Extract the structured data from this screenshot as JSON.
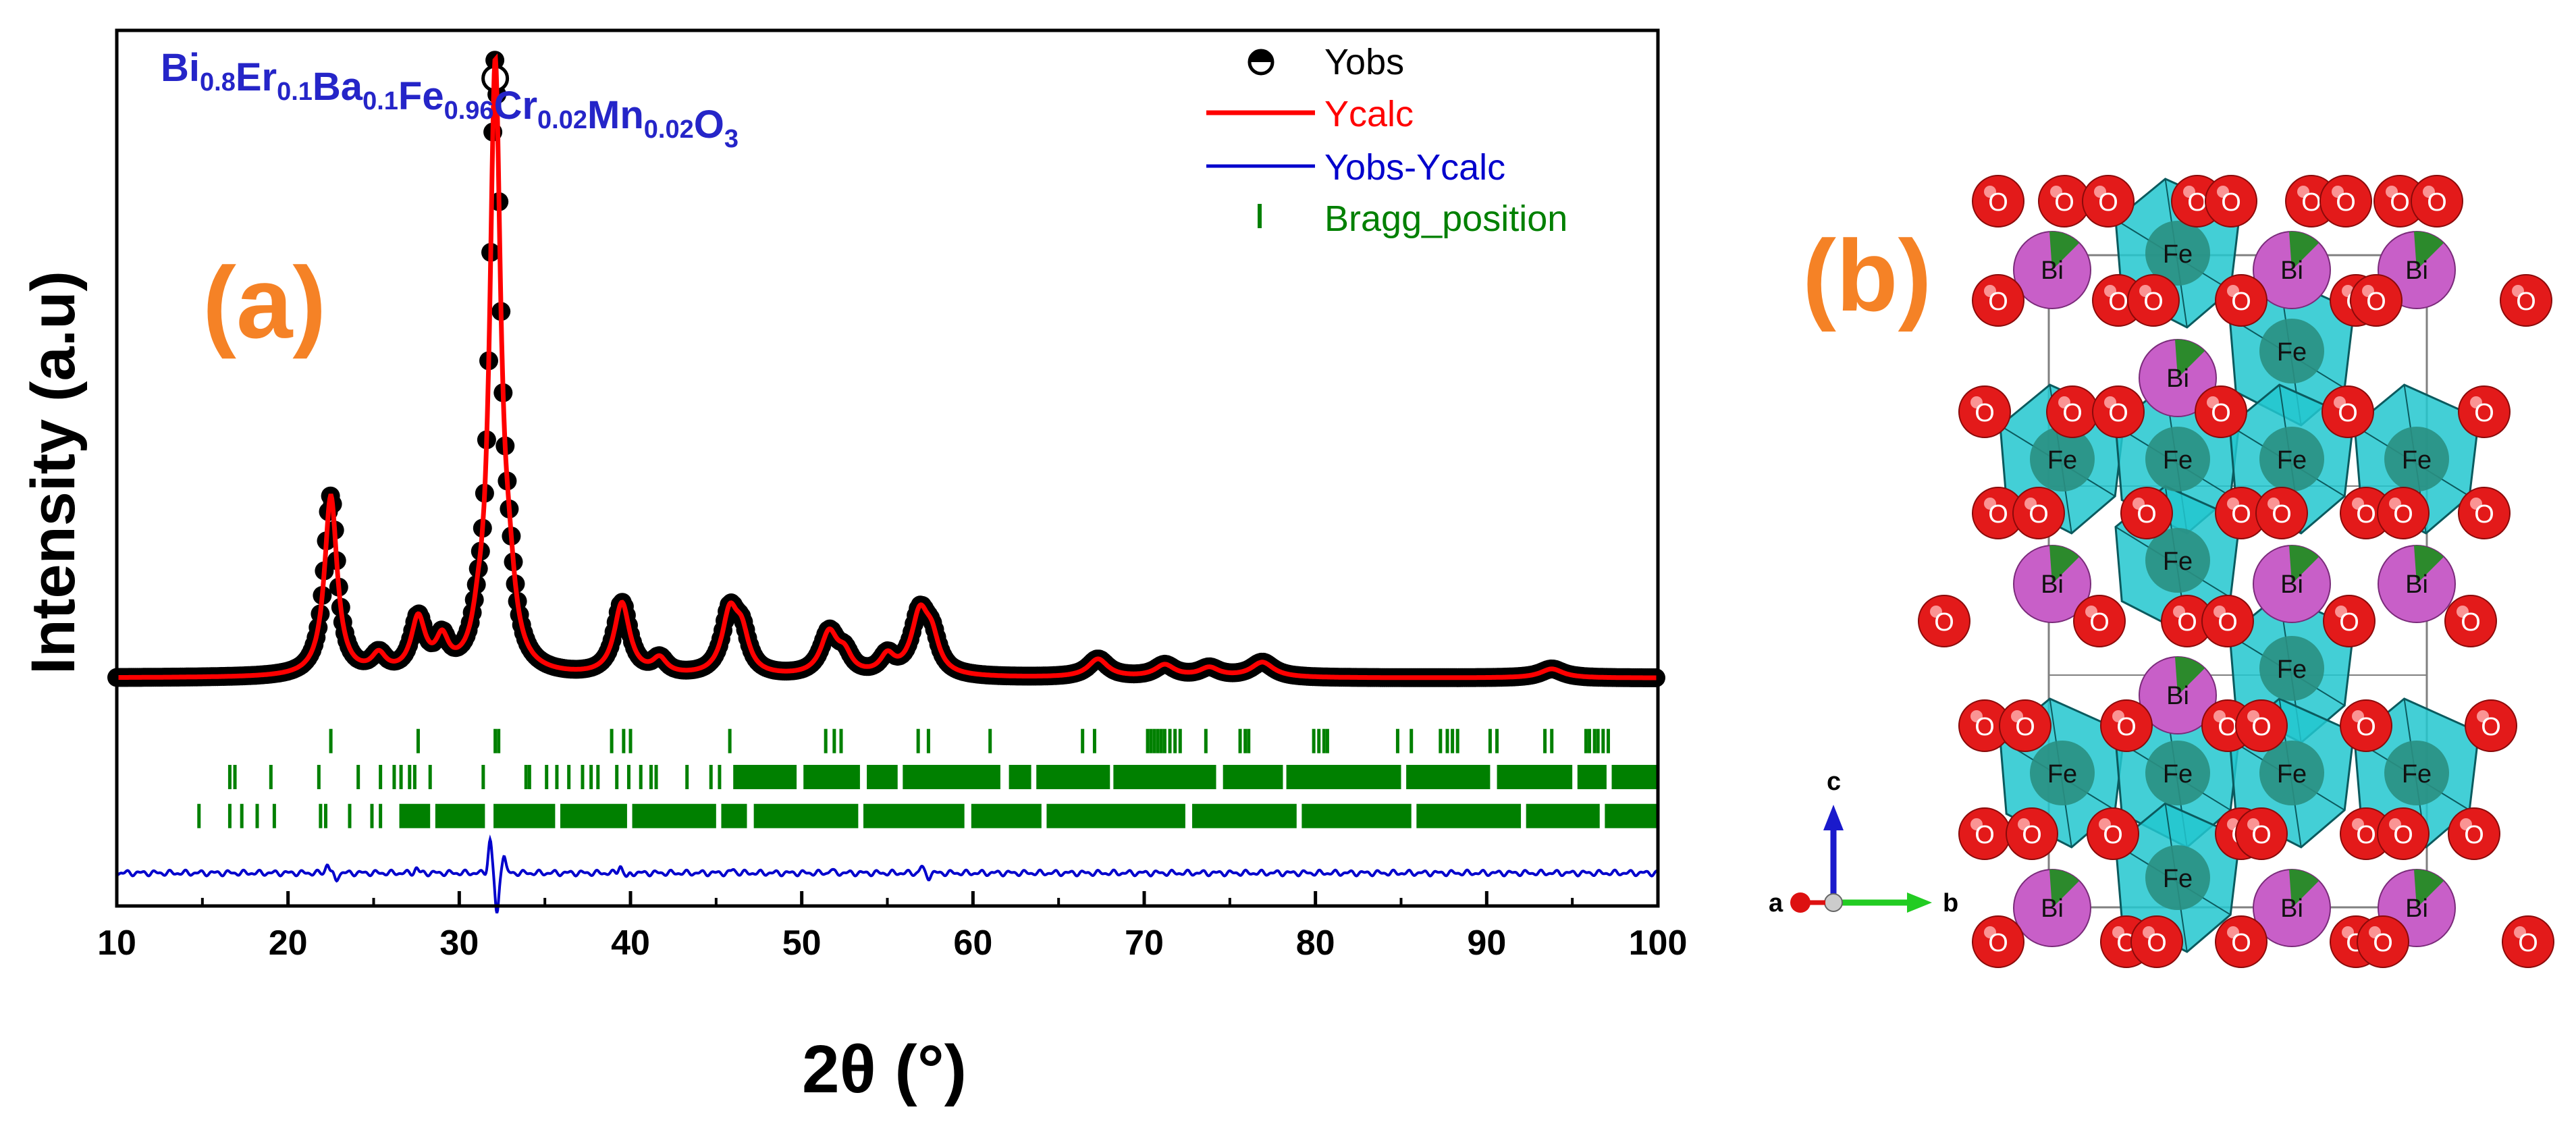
{
  "chart_data": {
    "type": "line",
    "panel_label": "(a)",
    "formula": {
      "parts": [
        {
          "el": "Bi",
          "sub": "0.8"
        },
        {
          "el": "Er",
          "sub": "0.1"
        },
        {
          "el": "Ba",
          "sub": "0.1"
        },
        {
          "el": "Fe",
          "sub": "0.96"
        },
        {
          "el": "Cr",
          "sub": "0.02"
        },
        {
          "el": "Mn",
          "sub": "0.02"
        },
        {
          "el": "O",
          "sub": "3"
        }
      ]
    },
    "xlabel": "2θ (°)",
    "ylabel": "Intensity (a.u)",
    "xlim": [
      10,
      100
    ],
    "ylim": [
      -0.36,
      1.1
    ],
    "xticks": [
      10,
      20,
      30,
      40,
      50,
      60,
      70,
      80,
      90,
      100
    ],
    "yticks_shown": false,
    "legend": {
      "placement": "top-right",
      "entries": [
        {
          "label": "Yobs",
          "kind": "marker",
          "color": "#000000"
        },
        {
          "label": "Ycalc",
          "kind": "line",
          "color": "#ff0000"
        },
        {
          "label": "Yobs-Ycalc",
          "kind": "line",
          "color": "#0000cc"
        },
        {
          "label": "Bragg_position",
          "kind": "tick",
          "color": "#008000"
        }
      ]
    },
    "profile": {
      "background": 0.02,
      "peaks": [
        {
          "pos": 22.5,
          "height": 0.3,
          "width": 0.45
        },
        {
          "pos": 25.3,
          "height": 0.03,
          "width": 0.5
        },
        {
          "pos": 27.6,
          "height": 0.09,
          "width": 0.5
        },
        {
          "pos": 29.0,
          "height": 0.05,
          "width": 0.45
        },
        {
          "pos": 31.1,
          "height": 0.04,
          "width": 0.4
        },
        {
          "pos": 32.1,
          "height": 1.0,
          "width": 0.38
        },
        {
          "pos": 32.9,
          "height": 0.1,
          "width": 0.45
        },
        {
          "pos": 39.5,
          "height": 0.12,
          "width": 0.55
        },
        {
          "pos": 41.7,
          "height": 0.025,
          "width": 0.5
        },
        {
          "pos": 45.8,
          "height": 0.1,
          "width": 0.55
        },
        {
          "pos": 46.5,
          "height": 0.06,
          "width": 0.5
        },
        {
          "pos": 51.6,
          "height": 0.07,
          "width": 0.6
        },
        {
          "pos": 52.5,
          "height": 0.03,
          "width": 0.5
        },
        {
          "pos": 55.0,
          "height": 0.03,
          "width": 0.5
        },
        {
          "pos": 56.9,
          "height": 0.1,
          "width": 0.6
        },
        {
          "pos": 57.6,
          "height": 0.05,
          "width": 0.5
        },
        {
          "pos": 67.3,
          "height": 0.03,
          "width": 0.7
        },
        {
          "pos": 71.2,
          "height": 0.02,
          "width": 0.7
        },
        {
          "pos": 73.8,
          "height": 0.015,
          "width": 0.7
        },
        {
          "pos": 76.9,
          "height": 0.025,
          "width": 0.8
        },
        {
          "pos": 93.8,
          "height": 0.015,
          "width": 0.8
        }
      ]
    },
    "bragg_rows": [
      {
        "y": -0.085,
        "positions": [
          22.5,
          27.6,
          32.1,
          32.3,
          38.9,
          39.6,
          40.0,
          45.8,
          51.4,
          51.9,
          52.3,
          56.8,
          57.4,
          61.0,
          66.4,
          67.1,
          70.2,
          70.4,
          70.6,
          70.8,
          71.0,
          71.2,
          71.5,
          71.8,
          72.1,
          73.6,
          75.6,
          75.9,
          76.1,
          79.9,
          80.2,
          80.5,
          80.7,
          84.8,
          85.6,
          87.3,
          87.7,
          88.0,
          88.3,
          90.2,
          90.6,
          93.4,
          93.8,
          95.8,
          96.0,
          96.3,
          96.5,
          96.8,
          97.1
        ]
      },
      {
        "y": -0.145,
        "positions_sparse": [
          16.6,
          16.9,
          19.0,
          21.8,
          24.1,
          25.4,
          26.2,
          26.6,
          27.1,
          27.4,
          28.3,
          31.4,
          33.9,
          34.1,
          35.1,
          35.7,
          36.4,
          37.2,
          37.7,
          38.1,
          39.2,
          39.9,
          40.6,
          41.2,
          41.5,
          43.3,
          44.7,
          45.2
        ],
        "bands": [
          [
            46.0,
            49.7
          ],
          [
            50.1,
            53.4
          ],
          [
            53.8,
            55.6
          ],
          [
            55.9,
            61.6
          ],
          [
            62.1,
            63.4
          ],
          [
            63.7,
            68.0
          ],
          [
            68.2,
            74.2
          ],
          [
            74.6,
            78.1
          ],
          [
            78.3,
            85.0
          ],
          [
            85.3,
            90.2
          ],
          [
            90.6,
            95.0
          ],
          [
            95.3,
            97.0
          ],
          [
            97.3,
            100.0
          ]
        ]
      },
      {
        "y": -0.21,
        "positions_sparse": [
          14.8,
          16.6,
          17.3,
          18.2,
          19.2,
          21.9,
          22.2,
          23.6,
          24.9,
          25.4
        ],
        "bands": [
          [
            26.5,
            28.3
          ],
          [
            28.6,
            31.5
          ],
          [
            32.0,
            35.6
          ],
          [
            35.9,
            39.8
          ],
          [
            40.1,
            45.0
          ],
          [
            45.3,
            46.8
          ],
          [
            47.2,
            53.3
          ],
          [
            53.6,
            59.5
          ],
          [
            59.9,
            64.0
          ],
          [
            64.3,
            72.4
          ],
          [
            72.8,
            78.9
          ],
          [
            79.2,
            85.6
          ],
          [
            85.9,
            92.0
          ],
          [
            92.3,
            96.6
          ],
          [
            96.9,
            100.0
          ]
        ]
      }
    ],
    "difference_line": {
      "baseline": -0.305,
      "features": [
        {
          "pos": 22.3,
          "amp": 0.015
        },
        {
          "pos": 22.8,
          "amp": -0.012
        },
        {
          "pos": 27.5,
          "amp": 0.008
        },
        {
          "pos": 31.8,
          "amp": 0.055
        },
        {
          "pos": 32.2,
          "amp": -0.07
        },
        {
          "pos": 32.6,
          "amp": 0.03
        },
        {
          "pos": 39.4,
          "amp": 0.012
        },
        {
          "pos": 39.8,
          "amp": -0.008
        },
        {
          "pos": 46.0,
          "amp": 0.006
        },
        {
          "pos": 51.7,
          "amp": 0.005
        },
        {
          "pos": 57.0,
          "amp": 0.01
        },
        {
          "pos": 57.4,
          "amp": -0.007
        }
      ]
    },
    "colors": {
      "observed": "#000000",
      "calculated": "#ff0000",
      "difference": "#0000cc",
      "bragg": "#008000",
      "formula": "#2525c8",
      "panel_label": "#f58226"
    }
  },
  "structure": {
    "panel_label": "(b)",
    "atom_labels": {
      "fe": "Fe",
      "bi": "Bi",
      "o": "O"
    },
    "axis_labels": {
      "a": "a",
      "b": "b",
      "c": "c"
    },
    "colors": {
      "oxygen": "#e31a1a",
      "bismuth": "#c85fc8",
      "iron": "#2a8f82",
      "octahedron": "#22c7cf",
      "cell_line": "#808080"
    }
  }
}
